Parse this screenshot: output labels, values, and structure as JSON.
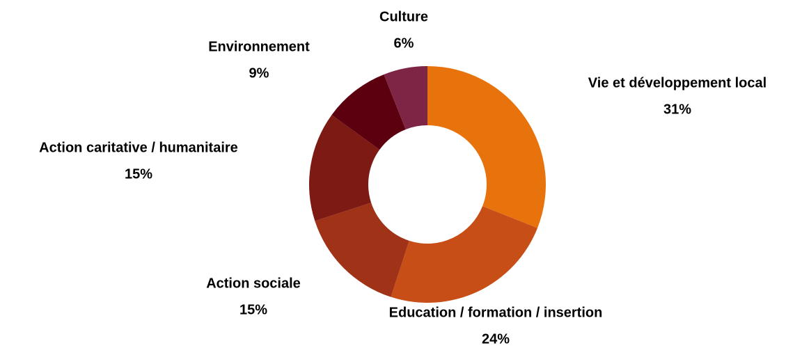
{
  "chart_data": {
    "type": "donut",
    "categories": [
      "Vie et développement local",
      "Education / formation / insertion",
      "Action sociale",
      "Action caritative / humanitaire",
      "Environnement",
      "Culture"
    ],
    "values": [
      31,
      24,
      15,
      15,
      9,
      6
    ],
    "value_labels": [
      "31%",
      "24%",
      "15%",
      "15%",
      "9%",
      "6%"
    ],
    "colors": [
      "#e8720c",
      "#c84e17",
      "#a03218",
      "#7e1a14",
      "#5c0010",
      "#7e2445"
    ]
  }
}
